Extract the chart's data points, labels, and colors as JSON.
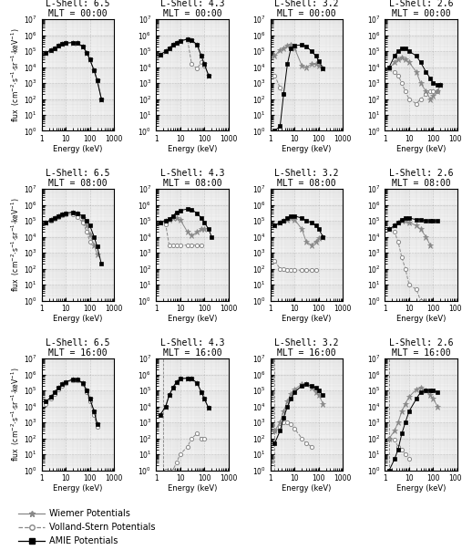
{
  "titles": [
    [
      "L-Shell: 6.5\nMLT = 00:00",
      "L-Shell: 4.3\nMLT = 00:00",
      "L-Shell: 3.2\nMLT = 00:00",
      "L-Shell: 2.6\nMLT = 00:00"
    ],
    [
      "L-Shell: 6.5\nMLT = 08:00",
      "L-Shell: 4.3\nMLT = 08:00",
      "L-Shell: 3.2\nMLT = 08:00",
      "L-Shell: 2.6\nMLT = 08:00"
    ],
    [
      "L-Shell: 6.5\nMLT = 16:00",
      "L-Shell: 4.3\nMLT = 16:00",
      "L-Shell: 3.2\nMLT = 16:00",
      "L-Shell: 2.6\nMLT = 16:00"
    ]
  ],
  "energy": [
    1.5,
    2.5,
    3.5,
    5.0,
    7.0,
    10.0,
    20.0,
    30.0,
    50.0,
    75.0,
    100.0,
    150.0,
    200.0,
    300.0
  ],
  "plots": {
    "r0c0": {
      "wiemer": [
        80000.0,
        120000.0,
        150000.0,
        220000.0,
        280000.0,
        320000.0,
        350000.0,
        320000.0,
        200000.0,
        80000.0,
        30000.0,
        6000.0,
        1500.0,
        100.0
      ],
      "volland": [
        80000.0,
        120000.0,
        150000.0,
        220000.0,
        280000.0,
        320000.0,
        350000.0,
        320000.0,
        200000.0,
        80000.0,
        30000.0,
        6000.0,
        1500.0,
        100.0
      ],
      "amie": [
        80000.0,
        120000.0,
        150000.0,
        220000.0,
        280000.0,
        320000.0,
        350000.0,
        320000.0,
        200000.0,
        80000.0,
        30000.0,
        6000.0,
        1500.0,
        100.0
      ],
      "vline": null
    },
    "r0c1": {
      "wiemer": [
        60000.0,
        100000.0,
        150000.0,
        250000.0,
        350000.0,
        450000.0,
        550000.0,
        500000.0,
        250000.0,
        50000.0,
        15000.0,
        3000.0,
        null,
        null
      ],
      "volland": [
        60000.0,
        100000.0,
        150000.0,
        250000.0,
        350000.0,
        450000.0,
        550000.0,
        15000.0,
        8000.0,
        20000.0,
        12000.0,
        null,
        null,
        null
      ],
      "amie": [
        60000.0,
        100000.0,
        150000.0,
        250000.0,
        350000.0,
        450000.0,
        550000.0,
        500000.0,
        250000.0,
        50000.0,
        15000.0,
        3000.0,
        null,
        null
      ],
      "vline": null
    },
    "r0c2": {
      "wiemer": [
        50000.0,
        120000.0,
        150000.0,
        220000.0,
        250000.0,
        150000.0,
        12000.0,
        10000.0,
        15000.0,
        15000.0,
        12000.0,
        8000.0,
        null,
        null
      ],
      "volland": [
        3000.0,
        500.0,
        200.0,
        null,
        null,
        null,
        null,
        null,
        null,
        null,
        null,
        null,
        null,
        null
      ],
      "amie": [
        1.0,
        2.0,
        200.0,
        15000.0,
        150000.0,
        220000.0,
        250000.0,
        200000.0,
        100000.0,
        50000.0,
        25000.0,
        8000.0,
        null,
        null
      ],
      "vline": null
    },
    "r0c3": {
      "wiemer": [
        8000.0,
        20000.0,
        30000.0,
        40000.0,
        30000.0,
        20000.0,
        5000.0,
        1000.0,
        300.0,
        100.0,
        150.0,
        300.0,
        800.0,
        null
      ],
      "volland": [
        8000.0,
        5000.0,
        3000.0,
        1000.0,
        300.0,
        100.0,
        50.0,
        100.0,
        200.0,
        300.0,
        300.0,
        300.0,
        800.0,
        null
      ],
      "amie": [
        10000.0,
        50000.0,
        100000.0,
        150000.0,
        150000.0,
        100000.0,
        50000.0,
        20000.0,
        5000.0,
        2000.0,
        1000.0,
        800.0,
        800.0,
        null
      ],
      "vline": null
    },
    "r1c0": {
      "wiemer": [
        80000.0,
        120000.0,
        150000.0,
        200000.0,
        250000.0,
        300000.0,
        350000.0,
        300000.0,
        150000.0,
        50000.0,
        15000.0,
        3000.0,
        800.0,
        null
      ],
      "volland": [
        80000.0,
        100000.0,
        130000.0,
        180000.0,
        220000.0,
        250000.0,
        250000.0,
        180000.0,
        80000.0,
        20000.0,
        5000.0,
        null,
        null,
        null
      ],
      "amie": [
        80000.0,
        120000.0,
        150000.0,
        200000.0,
        250000.0,
        300000.0,
        350000.0,
        300000.0,
        200000.0,
        100000.0,
        50000.0,
        10000.0,
        2500.0,
        200.0
      ],
      "vline": null
    },
    "r1c1": {
      "wiemer": [
        80000.0,
        100000.0,
        120000.0,
        150000.0,
        150000.0,
        120000.0,
        20000.0,
        12000.0,
        20000.0,
        30000.0,
        30000.0,
        null,
        null,
        null
      ],
      "volland": [
        80000.0,
        60000.0,
        3000.0,
        3000.0,
        3000.0,
        3000.0,
        3000.0,
        3000.0,
        3000.0,
        3000.0,
        null,
        null,
        null,
        null
      ],
      "amie": [
        80000.0,
        100000.0,
        130000.0,
        200000.0,
        350000.0,
        450000.0,
        550000.0,
        500000.0,
        300000.0,
        150000.0,
        80000.0,
        30000.0,
        10000.0,
        null
      ],
      "vline": null
    },
    "r1c2": {
      "wiemer": [
        50000.0,
        80000.0,
        100000.0,
        120000.0,
        150000.0,
        120000.0,
        30000.0,
        5000.0,
        3000.0,
        5000.0,
        8000.0,
        10000.0,
        null,
        null
      ],
      "volland": [
        300.0,
        100.0,
        100.0,
        80.0,
        80.0,
        80.0,
        80.0,
        80.0,
        80.0,
        80.0,
        null,
        null,
        null,
        null
      ],
      "amie": [
        50000.0,
        80000.0,
        100000.0,
        150000.0,
        200000.0,
        200000.0,
        150000.0,
        100000.0,
        80000.0,
        50000.0,
        30000.0,
        10000.0,
        null,
        null
      ],
      "vline": null
    },
    "r1c3": {
      "wiemer": [
        30000.0,
        50000.0,
        80000.0,
        100000.0,
        100000.0,
        80000.0,
        50000.0,
        30000.0,
        10000.0,
        3000.0,
        null,
        null,
        null,
        null
      ],
      "volland": [
        30000.0,
        20000.0,
        5000.0,
        500.0,
        100.0,
        10.0,
        5.0,
        1.0,
        null,
        null,
        null,
        null,
        null,
        null
      ],
      "amie": [
        30000.0,
        50000.0,
        80000.0,
        120000.0,
        150000.0,
        150000.0,
        120000.0,
        120000.0,
        100000.0,
        100000.0,
        100000.0,
        100000.0,
        null,
        null
      ],
      "vline": null
    },
    "r2c0": {
      "wiemer": [
        20000.0,
        40000.0,
        80000.0,
        150000.0,
        250000.0,
        350000.0,
        500000.0,
        500000.0,
        300000.0,
        100000.0,
        30000.0,
        5000.0,
        800.0,
        null
      ],
      "volland": [
        15000.0,
        30000.0,
        60000.0,
        120000.0,
        200000.0,
        300000.0,
        450000.0,
        450000.0,
        250000.0,
        80000.0,
        20000.0,
        3000.0,
        500.0,
        null
      ],
      "amie": [
        20000.0,
        40000.0,
        80000.0,
        150000.0,
        250000.0,
        350000.0,
        500000.0,
        500000.0,
        300000.0,
        100000.0,
        30000.0,
        5000.0,
        800.0,
        null
      ],
      "vline": null
    },
    "r2c1": {
      "wiemer": [
        3000.0,
        10000.0,
        50000.0,
        150000.0,
        350000.0,
        550000.0,
        600000.0,
        550000.0,
        300000.0,
        80000.0,
        30000.0,
        8000.0,
        null,
        null
      ],
      "volland": [
        null,
        1.0,
        null,
        1.0,
        3.0,
        10.0,
        30.0,
        100.0,
        200.0,
        100.0,
        100.0,
        null,
        null,
        null
      ],
      "amie": [
        3000.0,
        10000.0,
        50000.0,
        150000.0,
        350000.0,
        550000.0,
        600000.0,
        550000.0,
        300000.0,
        80000.0,
        30000.0,
        8000.0,
        null,
        null
      ],
      "vline": 2.0
    },
    "r2c2": {
      "wiemer": [
        300.0,
        1000.0,
        5000.0,
        20000.0,
        60000.0,
        120000.0,
        250000.0,
        250000.0,
        150000.0,
        80000.0,
        50000.0,
        15000.0,
        null,
        null
      ],
      "volland": [
        300.0,
        500.0,
        1000.0,
        1000.0,
        800.0,
        400.0,
        100.0,
        50.0,
        30.0,
        null,
        null,
        null,
        null,
        null
      ],
      "amie": [
        50.0,
        300.0,
        2000.0,
        10000.0,
        30000.0,
        80000.0,
        200000.0,
        250000.0,
        200000.0,
        150000.0,
        100000.0,
        50000.0,
        null,
        null
      ],
      "vline": 1.5
    },
    "r2c3": {
      "wiemer": [
        100.0,
        300.0,
        1000.0,
        5000.0,
        15000.0,
        40000.0,
        120000.0,
        150000.0,
        100000.0,
        50000.0,
        30000.0,
        10000.0,
        null,
        null
      ],
      "volland": [
        100.0,
        80.0,
        30.0,
        20.0,
        10.0,
        5.0,
        null,
        null,
        null,
        null,
        null,
        null,
        null,
        null
      ],
      "amie": [
        1.0,
        5.0,
        20.0,
        200.0,
        1000.0,
        5000.0,
        30000.0,
        80000.0,
        100000.0,
        100000.0,
        100000.0,
        80000.0,
        null,
        null
      ],
      "vline": 1.5
    }
  },
  "ylabel": "flux  (cm$^{-2}$·s$^{-1}$·sr$^{-1}$·keV$^{-1}$)",
  "xlabel": "Energy (keV)",
  "ylim": [
    1.0,
    10000000.0
  ],
  "xlim": [
    1,
    1000
  ],
  "wiemer_color": "#888888",
  "volland_color": "#888888",
  "amie_color": "#000000",
  "bg_color": "#f0f0f0",
  "title_fontsize": 7.0,
  "axis_fontsize": 6.0,
  "tick_fontsize": 5.5,
  "legend_fontsize": 7.0
}
